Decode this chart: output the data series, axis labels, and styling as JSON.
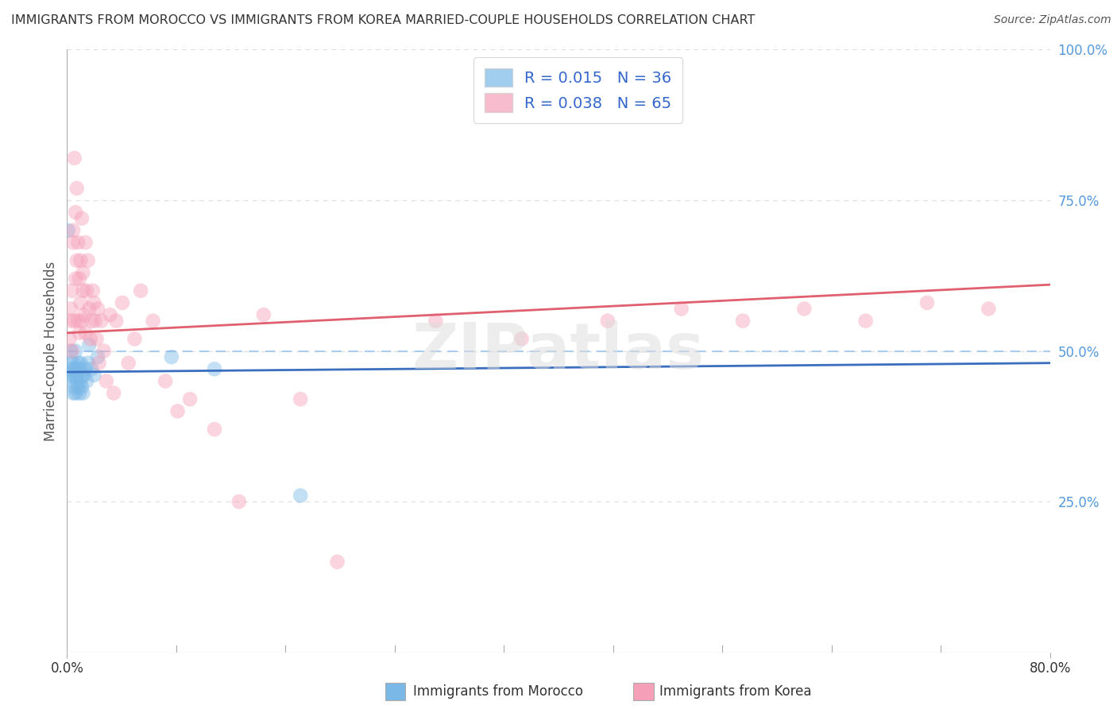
{
  "title": "IMMIGRANTS FROM MOROCCO VS IMMIGRANTS FROM KOREA MARRIED-COUPLE HOUSEHOLDS CORRELATION CHART",
  "source": "Source: ZipAtlas.com",
  "xlabel_bottom": [
    "Immigrants from Morocco",
    "Immigrants from Korea"
  ],
  "ylabel": "Married-couple Households",
  "xlim": [
    0.0,
    0.8
  ],
  "ylim": [
    0.0,
    1.0
  ],
  "xtick_labels": [
    "0.0%",
    "80.0%"
  ],
  "xtick_positions": [
    0.0,
    0.8
  ],
  "ytick_labels_right": [
    "100.0%",
    "75.0%",
    "50.0%",
    "25.0%"
  ],
  "ytick_positions_right": [
    1.0,
    0.75,
    0.5,
    0.25
  ],
  "legend_text1": "R = 0.015   N = 36",
  "legend_text2": "R = 0.038   N = 65",
  "blue_color": "#7ab8e8",
  "pink_color": "#f5a0b8",
  "blue_line_color": "#3a6fbf",
  "pink_line_color": "#e06070",
  "dashed_line_color": "#aaccee",
  "watermark": "ZIPatlas",
  "blue_R": 0.015,
  "pink_R": 0.038,
  "blue_scatter_x": [
    0.001,
    0.002,
    0.003,
    0.003,
    0.004,
    0.004,
    0.005,
    0.005,
    0.005,
    0.006,
    0.006,
    0.007,
    0.007,
    0.007,
    0.008,
    0.008,
    0.009,
    0.009,
    0.01,
    0.01,
    0.011,
    0.011,
    0.012,
    0.012,
    0.013,
    0.014,
    0.015,
    0.016,
    0.017,
    0.018,
    0.02,
    0.022,
    0.025,
    0.085,
    0.12,
    0.19
  ],
  "blue_scatter_y": [
    0.7,
    0.46,
    0.48,
    0.5,
    0.45,
    0.47,
    0.43,
    0.46,
    0.48,
    0.44,
    0.47,
    0.43,
    0.46,
    0.5,
    0.45,
    0.47,
    0.44,
    0.48,
    0.43,
    0.47,
    0.45,
    0.48,
    0.44,
    0.46,
    0.43,
    0.46,
    0.47,
    0.45,
    0.48,
    0.51,
    0.47,
    0.46,
    0.49,
    0.49,
    0.47,
    0.26
  ],
  "pink_scatter_x": [
    0.002,
    0.003,
    0.003,
    0.004,
    0.004,
    0.005,
    0.005,
    0.006,
    0.006,
    0.007,
    0.007,
    0.008,
    0.008,
    0.009,
    0.009,
    0.01,
    0.01,
    0.011,
    0.011,
    0.012,
    0.012,
    0.013,
    0.013,
    0.014,
    0.015,
    0.015,
    0.016,
    0.017,
    0.018,
    0.019,
    0.02,
    0.021,
    0.022,
    0.023,
    0.024,
    0.025,
    0.026,
    0.028,
    0.03,
    0.032,
    0.035,
    0.038,
    0.04,
    0.045,
    0.05,
    0.055,
    0.06,
    0.07,
    0.08,
    0.09,
    0.1,
    0.12,
    0.14,
    0.16,
    0.19,
    0.22,
    0.3,
    0.37,
    0.44,
    0.5,
    0.55,
    0.6,
    0.65,
    0.7,
    0.75
  ],
  "pink_scatter_y": [
    0.52,
    0.55,
    0.57,
    0.6,
    0.5,
    0.68,
    0.7,
    0.55,
    0.82,
    0.62,
    0.73,
    0.65,
    0.77,
    0.55,
    0.68,
    0.53,
    0.62,
    0.65,
    0.58,
    0.72,
    0.55,
    0.6,
    0.63,
    0.56,
    0.53,
    0.68,
    0.6,
    0.65,
    0.57,
    0.52,
    0.55,
    0.6,
    0.58,
    0.55,
    0.52,
    0.57,
    0.48,
    0.55,
    0.5,
    0.45,
    0.56,
    0.43,
    0.55,
    0.58,
    0.48,
    0.52,
    0.6,
    0.55,
    0.45,
    0.4,
    0.42,
    0.37,
    0.25,
    0.56,
    0.42,
    0.15,
    0.55,
    0.52,
    0.55,
    0.57,
    0.55,
    0.57,
    0.55,
    0.58,
    0.57
  ],
  "background_color": "#ffffff",
  "grid_color": "#dddddd",
  "blue_trend_start_y": 0.465,
  "blue_trend_end_y": 0.48,
  "pink_trend_start_y": 0.53,
  "pink_trend_end_y": 0.61
}
